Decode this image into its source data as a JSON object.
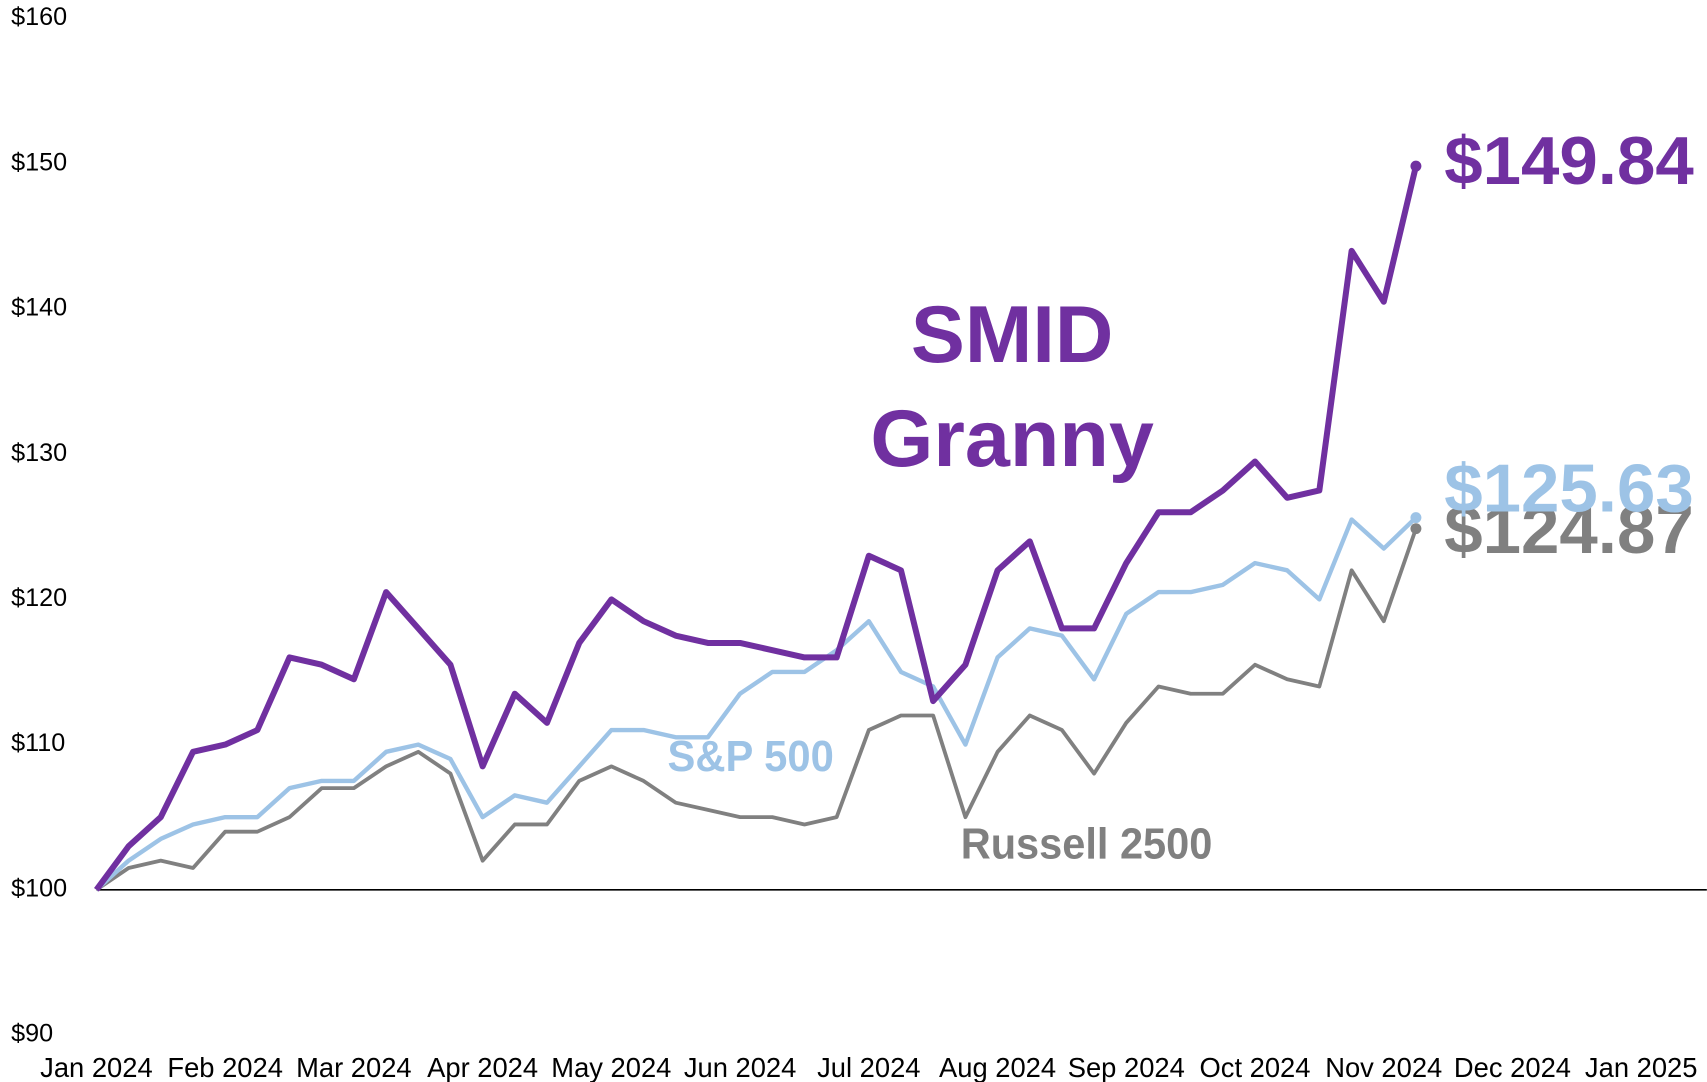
{
  "chart_data": {
    "type": "line",
    "xlim": [
      0,
      12
    ],
    "xticks": [
      {
        "value": 0,
        "label": "Jan 2024"
      },
      {
        "value": 1,
        "label": "Feb 2024"
      },
      {
        "value": 2,
        "label": "Mar 2024"
      },
      {
        "value": 3,
        "label": "Apr 2024"
      },
      {
        "value": 4,
        "label": "May 2024"
      },
      {
        "value": 5,
        "label": "Jun 2024"
      },
      {
        "value": 6,
        "label": "Jul 2024"
      },
      {
        "value": 7,
        "label": "Aug 2024"
      },
      {
        "value": 8,
        "label": "Sep 2024"
      },
      {
        "value": 9,
        "label": "Oct 2024"
      },
      {
        "value": 10,
        "label": "Nov 2024"
      },
      {
        "value": 11,
        "label": "Dec 2024"
      },
      {
        "value": 12,
        "label": "Jan 2025"
      }
    ],
    "ylim": [
      90,
      160
    ],
    "yticks": [
      {
        "value": 90,
        "label": "$90"
      },
      {
        "value": 100,
        "label": "$100"
      },
      {
        "value": 110,
        "label": "$110"
      },
      {
        "value": 120,
        "label": "$120"
      },
      {
        "value": 130,
        "label": "$130"
      },
      {
        "value": 140,
        "label": "$140"
      },
      {
        "value": 150,
        "label": "$150"
      },
      {
        "value": 160,
        "label": "$160"
      }
    ],
    "baseline": 100,
    "x": [
      0,
      0.25,
      0.5,
      0.75,
      1,
      1.25,
      1.5,
      1.75,
      2,
      2.25,
      2.5,
      2.75,
      3,
      3.25,
      3.5,
      3.75,
      4,
      4.25,
      4.5,
      4.75,
      5,
      5.25,
      5.5,
      5.75,
      6,
      6.25,
      6.5,
      6.75,
      7,
      7.25,
      7.5,
      7.75,
      8,
      8.25,
      8.5,
      8.75,
      9,
      9.25,
      9.5,
      9.75,
      10,
      10.25
    ],
    "series": [
      {
        "name": "Russell 2500",
        "color": "#808080",
        "values": [
          100,
          101.5,
          102,
          101.5,
          104,
          104,
          105,
          107,
          107,
          108.5,
          109.5,
          108,
          102,
          104.5,
          104.5,
          107.5,
          108.5,
          107.5,
          106,
          105.5,
          105,
          105,
          104.5,
          105,
          111,
          112,
          112,
          105,
          109.5,
          112,
          111,
          108,
          111.5,
          114,
          113.5,
          113.5,
          115.5,
          114.5,
          114,
          122,
          118.5,
          124.87
        ],
        "value_labels": [
          null,
          null,
          null,
          null,
          null,
          null,
          null,
          null,
          null,
          null,
          null,
          null,
          null,
          null,
          null,
          null,
          null,
          null,
          null,
          null,
          null,
          null,
          null,
          null,
          null,
          null,
          null,
          null,
          null,
          null,
          null,
          null,
          null,
          null,
          null,
          null,
          null,
          null,
          null,
          null,
          null,
          "$124.87"
        ]
      },
      {
        "name": "S&P 500",
        "color": "#9dc3e6",
        "values": [
          100,
          102,
          103.5,
          104.5,
          105,
          105,
          107,
          107.5,
          107.5,
          109.5,
          110,
          109,
          105,
          106.5,
          106,
          108.5,
          111,
          111,
          110.5,
          110.5,
          113.5,
          115,
          115,
          116.5,
          118.5,
          115,
          114,
          110,
          116,
          118,
          117.5,
          114.5,
          119,
          120.5,
          120.5,
          121,
          122.5,
          122,
          120,
          125.5,
          123.5,
          125.63
        ],
        "value_labels": [
          null,
          null,
          null,
          null,
          null,
          null,
          null,
          null,
          null,
          null,
          null,
          null,
          null,
          null,
          null,
          null,
          null,
          null,
          null,
          null,
          null,
          null,
          null,
          null,
          null,
          null,
          null,
          null,
          null,
          null,
          null,
          null,
          null,
          null,
          null,
          null,
          null,
          null,
          null,
          null,
          null,
          "$125.63"
        ]
      },
      {
        "name": "SMID Granny",
        "color": "#7030a0",
        "values": [
          100,
          103,
          105,
          109.5,
          110,
          111,
          116,
          115.5,
          114.5,
          120.5,
          118,
          115.5,
          108.5,
          113.5,
          111.5,
          117,
          120,
          118.5,
          117.5,
          117,
          117,
          116.5,
          116,
          116,
          123,
          122,
          113,
          115.5,
          122,
          124,
          118,
          118,
          122.5,
          126,
          126,
          127.5,
          129.5,
          127,
          127.5,
          144,
          140.5,
          149.84
        ],
        "value_labels": [
          null,
          null,
          null,
          null,
          null,
          null,
          null,
          null,
          null,
          null,
          null,
          null,
          null,
          null,
          null,
          null,
          null,
          null,
          null,
          null,
          null,
          null,
          null,
          null,
          null,
          null,
          null,
          null,
          null,
          null,
          null,
          null,
          null,
          null,
          null,
          null,
          null,
          null,
          null,
          null,
          null,
          "$149.84"
        ]
      }
    ]
  }
}
